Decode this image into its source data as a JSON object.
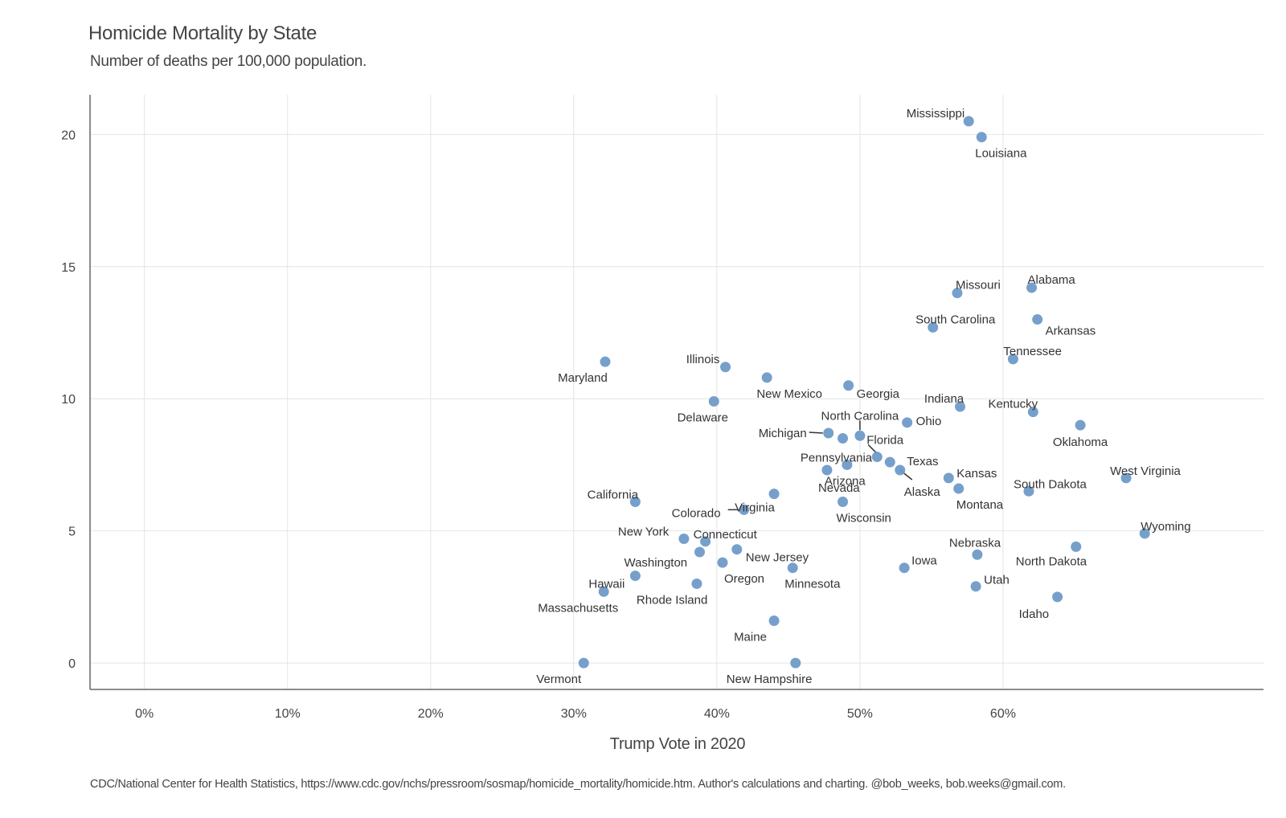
{
  "chart_data": {
    "type": "scatter",
    "title": "Homicide Mortality by State",
    "subtitle": "Number of deaths per 100,000 population.",
    "xlabel": "Trump Vote in 2020",
    "ylabel": "",
    "caption": "CDC/National Center for Health Statistics, https://www.cdc.gov/nchs/pressroom/sosmap/homicide_mortality/homicide.htm. Author's calculations and charting. @bob_weeks, bob.weeks@gmail.com.",
    "xlim": [
      -3.8,
      78.2
    ],
    "ylim": [
      -1.0,
      21.5
    ],
    "x_ticks": [
      0,
      10,
      20,
      30,
      40,
      50,
      60
    ],
    "x_tick_labels": [
      "0%",
      "10%",
      "20%",
      "30%",
      "40%",
      "50%",
      "60%"
    ],
    "y_ticks": [
      0,
      5,
      10,
      15,
      20
    ],
    "y_tick_labels": [
      "0",
      "5",
      "10",
      "15",
      "20"
    ],
    "grid": true,
    "point_color": "#6f9bc8",
    "points": [
      {
        "name": "Mississippi",
        "x": 57.6,
        "y": 20.5
      },
      {
        "name": "Louisiana",
        "x": 58.5,
        "y": 19.9
      },
      {
        "name": "Alabama",
        "x": 62.0,
        "y": 14.2
      },
      {
        "name": "Missouri",
        "x": 56.8,
        "y": 14.0
      },
      {
        "name": "Arkansas",
        "x": 62.4,
        "y": 13.0
      },
      {
        "name": "South Carolina",
        "x": 55.1,
        "y": 12.7
      },
      {
        "name": "Tennessee",
        "x": 60.7,
        "y": 11.5
      },
      {
        "name": "Maryland",
        "x": 32.2,
        "y": 11.4
      },
      {
        "name": "Illinois",
        "x": 40.6,
        "y": 11.2
      },
      {
        "name": "New Mexico",
        "x": 43.5,
        "y": 10.8
      },
      {
        "name": "Georgia",
        "x": 49.2,
        "y": 10.5
      },
      {
        "name": "Delaware",
        "x": 39.8,
        "y": 9.9
      },
      {
        "name": "Indiana",
        "x": 57.0,
        "y": 9.7
      },
      {
        "name": "Kentucky",
        "x": 62.1,
        "y": 9.5
      },
      {
        "name": "Ohio",
        "x": 53.3,
        "y": 9.1
      },
      {
        "name": "Oklahoma",
        "x": 65.4,
        "y": 9.0
      },
      {
        "name": "Michigan",
        "x": 47.8,
        "y": 8.7
      },
      {
        "name": "North Carolina",
        "x": 50.0,
        "y": 8.6
      },
      {
        "name": "Pennsylvania",
        "x": 48.8,
        "y": 8.5
      },
      {
        "name": "Florida",
        "x": 51.2,
        "y": 7.8
      },
      {
        "name": "Texas",
        "x": 52.1,
        "y": 7.6
      },
      {
        "name": "Arizona",
        "x": 49.1,
        "y": 7.5
      },
      {
        "name": "Alaska",
        "x": 52.8,
        "y": 7.3
      },
      {
        "name": "Nevada",
        "x": 47.7,
        "y": 7.3
      },
      {
        "name": "Kansas",
        "x": 56.2,
        "y": 7.0
      },
      {
        "name": "West Virginia",
        "x": 68.6,
        "y": 7.0
      },
      {
        "name": "Montana",
        "x": 56.9,
        "y": 6.6
      },
      {
        "name": "South Dakota",
        "x": 61.8,
        "y": 6.5
      },
      {
        "name": "Virginia",
        "x": 44.0,
        "y": 6.4
      },
      {
        "name": "California",
        "x": 34.3,
        "y": 6.1
      },
      {
        "name": "Wisconsin",
        "x": 48.8,
        "y": 6.1
      },
      {
        "name": "Colorado",
        "x": 41.9,
        "y": 5.8
      },
      {
        "name": "Wyoming",
        "x": 69.9,
        "y": 4.9
      },
      {
        "name": "New York",
        "x": 37.7,
        "y": 4.7
      },
      {
        "name": "Connecticut",
        "x": 39.2,
        "y": 4.6
      },
      {
        "name": "North Dakota",
        "x": 65.1,
        "y": 4.4
      },
      {
        "name": "New Jersey",
        "x": 41.4,
        "y": 4.3
      },
      {
        "name": "Washington",
        "x": 38.8,
        "y": 4.2
      },
      {
        "name": "Nebraska",
        "x": 58.2,
        "y": 4.1
      },
      {
        "name": "Oregon",
        "x": 40.4,
        "y": 3.8
      },
      {
        "name": "Iowa",
        "x": 53.1,
        "y": 3.6
      },
      {
        "name": "Minnesota",
        "x": 45.3,
        "y": 3.6
      },
      {
        "name": "Hawaii",
        "x": 34.3,
        "y": 3.3
      },
      {
        "name": "Rhode Island",
        "x": 38.6,
        "y": 3.0
      },
      {
        "name": "Utah",
        "x": 58.1,
        "y": 2.9
      },
      {
        "name": "Massachusetts",
        "x": 32.1,
        "y": 2.7
      },
      {
        "name": "Idaho",
        "x": 63.8,
        "y": 2.5
      },
      {
        "name": "Maine",
        "x": 44.0,
        "y": 1.6
      },
      {
        "name": "Vermont",
        "x": 30.7,
        "y": 0.0
      },
      {
        "name": "New Hampshire",
        "x": 45.5,
        "y": 0.0
      }
    ]
  }
}
